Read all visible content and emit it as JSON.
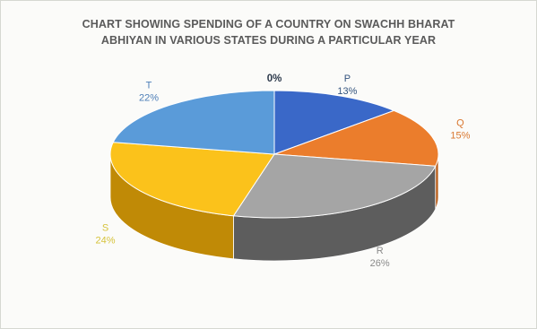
{
  "chart_data": {
    "type": "pie",
    "title_lines": [
      "CHART SHOWING SPENDING OF A COUNTRY ON SWACHH BHARAT",
      "ABHIYAN IN VARIOUS STATES DURING A PARTICULAR YEAR"
    ],
    "categories": [
      "P",
      "Q",
      "R",
      "S",
      "T",
      ""
    ],
    "values": [
      13,
      15,
      26,
      24,
      22,
      0
    ],
    "value_labels": [
      "13%",
      "15%",
      "26%",
      "24%",
      "22%",
      "0%"
    ],
    "colors": [
      "#3a68c8",
      "#eb7d2c",
      "#a5a5a5",
      "#fbc21b",
      "#5a9bd9"
    ],
    "dark_colors": [
      "#254a96",
      "#b75c18",
      "#5d5d5d",
      "#c08a06",
      "#3e76b3"
    ],
    "label_colors": [
      "#35557f",
      "#d9772f",
      "#8a8a8a",
      "#d6c33c",
      "#4e7fb8"
    ]
  }
}
